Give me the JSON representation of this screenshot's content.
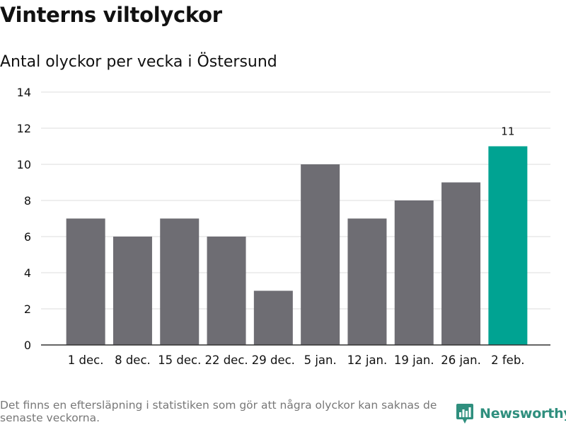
{
  "title": "Vinterns viltolyckor",
  "subtitle": "Antal olyckor per vecka i Östersund",
  "footnote": "Det finns en eftersläpning i statistiken som gör att några olyckor kan saknas de senaste veckorna.",
  "brand": {
    "name": "Newsworthy",
    "icon": "newsworthy-logo-icon"
  },
  "colors": {
    "bar": "#6e6d73",
    "highlight": "#00a392",
    "grid": "#dddddd",
    "axis": "#333333",
    "text": "#111111"
  },
  "chart_data": {
    "type": "bar",
    "title": "Antal olyckor per vecka i Östersund",
    "xlabel": "",
    "ylabel": "",
    "categories": [
      "1 dec.",
      "8 dec.",
      "15 dec.",
      "22 dec.",
      "29 dec.",
      "5 jan.",
      "12 jan.",
      "19 jan.",
      "26 jan.",
      "2 feb."
    ],
    "values": [
      7,
      6,
      7,
      6,
      3,
      10,
      7,
      8,
      9,
      11
    ],
    "highlight_index": 9,
    "data_labels": [
      {
        "index": 9,
        "text": "11"
      }
    ],
    "ylim": [
      0,
      14
    ],
    "yticks": [
      0,
      2,
      4,
      6,
      8,
      10,
      12,
      14
    ],
    "grid": true
  }
}
